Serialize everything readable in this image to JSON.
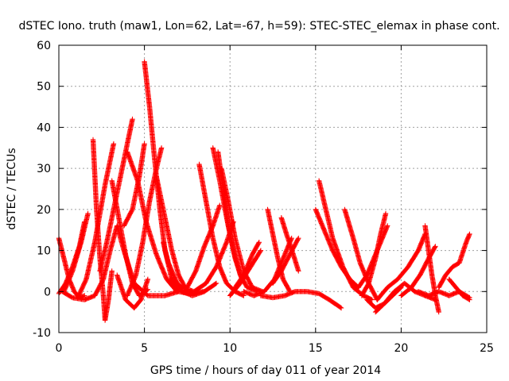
{
  "chart_data": {
    "type": "scatter",
    "title": "dSTEC Iono. truth (maw1, Lon=62, Lat=-67, h=59): STEC-STEC_elemax in phase cont.",
    "xlabel": "GPS time / hours of day 011 of year 2014",
    "ylabel": "dSTEC  / TECUs",
    "xlim": [
      0,
      25
    ],
    "ylim": [
      -10,
      60
    ],
    "xticks": [
      0,
      5,
      10,
      15,
      20,
      25
    ],
    "yticks": [
      -10,
      0,
      10,
      20,
      30,
      40,
      50,
      60
    ],
    "grid": true,
    "marker": "+",
    "color": "#ff0000",
    "series": [
      {
        "values": [
          [
            0.0,
            13.0
          ],
          [
            0.3,
            8.0
          ],
          [
            0.6,
            3.0
          ],
          [
            0.9,
            0.0
          ],
          [
            1.2,
            -1.5
          ],
          [
            1.5,
            -1.0
          ]
        ]
      },
      {
        "values": [
          [
            0.0,
            -0.5
          ],
          [
            0.4,
            2.0
          ],
          [
            0.8,
            6.0
          ],
          [
            1.2,
            11.0
          ],
          [
            1.5,
            17.0
          ]
        ]
      },
      {
        "values": [
          [
            0.3,
            0.0
          ],
          [
            0.8,
            5.0
          ],
          [
            1.3,
            12.0
          ],
          [
            1.7,
            19.0
          ]
        ]
      },
      {
        "values": [
          [
            1.1,
            -1.5
          ],
          [
            1.6,
            3.0
          ],
          [
            2.1,
            12.0
          ],
          [
            2.7,
            26.0
          ],
          [
            3.2,
            36.0
          ]
        ]
      },
      {
        "values": [
          [
            0.2,
            0.0
          ],
          [
            0.8,
            -1.5
          ],
          [
            1.5,
            -2.0
          ],
          [
            2.1,
            -1.0
          ],
          [
            2.6,
            3.0
          ],
          [
            3.0,
            10.0
          ],
          [
            3.4,
            16.0
          ],
          [
            3.8,
            10.0
          ],
          [
            4.4,
            2.0
          ],
          [
            5.2,
            -1.0
          ],
          [
            6.2,
            -1.0
          ],
          [
            7.0,
            0.0
          ]
        ]
      },
      {
        "values": [
          [
            2.0,
            37.0
          ],
          [
            2.2,
            20.0
          ],
          [
            2.4,
            8.0
          ],
          [
            2.6,
            -1.0
          ],
          [
            2.7,
            -7.0
          ],
          [
            2.9,
            -2.0
          ],
          [
            3.1,
            5.0
          ]
        ]
      },
      {
        "values": [
          [
            2.4,
            5.0
          ],
          [
            2.8,
            12.0
          ],
          [
            3.2,
            20.0
          ],
          [
            3.7,
            30.0
          ],
          [
            4.1,
            38.0
          ],
          [
            4.3,
            42.0
          ]
        ]
      },
      {
        "values": [
          [
            3.1,
            27.0
          ],
          [
            3.5,
            18.0
          ],
          [
            3.9,
            9.0
          ],
          [
            4.3,
            2.0
          ],
          [
            4.7,
            -1.0
          ],
          [
            5.2,
            0.5
          ]
        ]
      },
      {
        "values": [
          [
            3.4,
            4.0
          ],
          [
            3.9,
            -2.0
          ],
          [
            4.4,
            -4.0
          ],
          [
            4.8,
            -2.0
          ],
          [
            5.2,
            3.0
          ]
        ]
      },
      {
        "values": [
          [
            4.0,
            34.0
          ],
          [
            4.6,
            27.0
          ],
          [
            5.1,
            17.0
          ],
          [
            5.7,
            9.0
          ],
          [
            6.3,
            3.0
          ],
          [
            6.9,
            0.0
          ]
        ]
      },
      {
        "values": [
          [
            3.8,
            16.0
          ],
          [
            4.3,
            20.0
          ],
          [
            4.7,
            28.0
          ],
          [
            5.0,
            36.0
          ]
        ]
      },
      {
        "values": [
          [
            4.0,
            -1.0
          ],
          [
            4.5,
            4.0
          ],
          [
            4.9,
            12.0
          ],
          [
            5.3,
            22.0
          ],
          [
            5.7,
            30.0
          ],
          [
            6.0,
            35.0
          ]
        ]
      },
      {
        "values": [
          [
            5.0,
            56.0
          ],
          [
            5.3,
            45.0
          ],
          [
            5.6,
            32.0
          ],
          [
            5.9,
            20.0
          ],
          [
            6.2,
            10.0
          ],
          [
            6.6,
            3.0
          ],
          [
            7.0,
            0.0
          ],
          [
            7.6,
            -0.5
          ],
          [
            8.5,
            0.0
          ]
        ]
      },
      {
        "values": [
          [
            5.7,
            28.0
          ],
          [
            6.2,
            18.0
          ],
          [
            6.6,
            10.0
          ],
          [
            7.0,
            4.0
          ],
          [
            7.5,
            0.0
          ]
        ]
      },
      {
        "values": [
          [
            6.1,
            12.0
          ],
          [
            6.4,
            7.0
          ],
          [
            6.8,
            3.0
          ],
          [
            7.2,
            0.0
          ],
          [
            7.8,
            -1.0
          ],
          [
            8.5,
            0.0
          ],
          [
            9.2,
            2.0
          ]
        ]
      },
      {
        "values": [
          [
            8.2,
            31.0
          ],
          [
            8.6,
            22.0
          ],
          [
            9.0,
            13.0
          ],
          [
            9.4,
            6.0
          ],
          [
            9.8,
            2.0
          ],
          [
            10.3,
            0.0
          ],
          [
            10.8,
            -1.0
          ]
        ]
      },
      {
        "values": [
          [
            7.5,
            1.0
          ],
          [
            8.0,
            5.0
          ],
          [
            8.5,
            11.0
          ],
          [
            9.0,
            16.0
          ],
          [
            9.4,
            21.0
          ]
        ]
      },
      {
        "values": [
          [
            9.0,
            35.0
          ],
          [
            9.4,
            27.0
          ],
          [
            9.8,
            18.0
          ],
          [
            10.2,
            10.0
          ],
          [
            10.6,
            4.0
          ],
          [
            11.0,
            1.0
          ],
          [
            11.6,
            0.0
          ]
        ]
      },
      {
        "values": [
          [
            9.3,
            34.0
          ],
          [
            9.6,
            25.0
          ],
          [
            9.9,
            16.0
          ],
          [
            10.3,
            8.0
          ],
          [
            10.7,
            3.0
          ]
        ]
      },
      {
        "values": [
          [
            9.5,
            30.0
          ],
          [
            9.9,
            22.0
          ],
          [
            10.3,
            13.0
          ],
          [
            10.8,
            5.0
          ],
          [
            11.3,
            1.0
          ],
          [
            11.9,
            0.0
          ]
        ]
      },
      {
        "values": [
          [
            6.5,
            3.0
          ],
          [
            7.2,
            1.0
          ],
          [
            7.9,
            0.0
          ],
          [
            8.6,
            2.0
          ],
          [
            9.2,
            6.0
          ],
          [
            9.8,
            12.0
          ],
          [
            10.2,
            17.0
          ]
        ]
      },
      {
        "values": [
          [
            10.0,
            -1.0
          ],
          [
            10.6,
            2.0
          ],
          [
            11.2,
            6.0
          ],
          [
            11.8,
            10.0
          ]
        ]
      },
      {
        "values": [
          [
            10.3,
            1.0
          ],
          [
            10.8,
            4.0
          ],
          [
            11.3,
            9.0
          ],
          [
            11.7,
            12.0
          ]
        ]
      },
      {
        "values": [
          [
            12.2,
            20.0
          ],
          [
            12.5,
            14.0
          ],
          [
            12.8,
            8.0
          ],
          [
            13.1,
            3.0
          ],
          [
            13.5,
            0.0
          ]
        ]
      },
      {
        "values": [
          [
            10.8,
            0.0
          ],
          [
            11.4,
            -1.0
          ],
          [
            12.0,
            0.0
          ],
          [
            12.6,
            3.0
          ],
          [
            13.1,
            8.0
          ],
          [
            13.6,
            13.0
          ]
        ]
      },
      {
        "values": [
          [
            12.5,
            2.0
          ],
          [
            13.0,
            5.0
          ],
          [
            13.5,
            9.0
          ],
          [
            14.0,
            13.0
          ]
        ]
      },
      {
        "values": [
          [
            13.0,
            18.0
          ],
          [
            13.3,
            14.0
          ],
          [
            13.7,
            9.0
          ],
          [
            14.0,
            5.0
          ]
        ]
      },
      {
        "values": [
          [
            11.8,
            -1.0
          ],
          [
            12.5,
            -1.5
          ],
          [
            13.2,
            -1.0
          ],
          [
            13.8,
            0.0
          ],
          [
            14.5,
            0.0
          ],
          [
            15.2,
            -0.5
          ],
          [
            15.8,
            -2.0
          ],
          [
            16.5,
            -4.0
          ]
        ]
      },
      {
        "values": [
          [
            15.0,
            20.0
          ],
          [
            15.5,
            15.0
          ],
          [
            16.0,
            10.0
          ],
          [
            16.5,
            6.0
          ],
          [
            17.0,
            3.0
          ],
          [
            17.5,
            1.0
          ]
        ]
      },
      {
        "values": [
          [
            15.2,
            27.0
          ],
          [
            15.6,
            20.0
          ],
          [
            16.0,
            13.0
          ],
          [
            16.6,
            6.0
          ],
          [
            17.2,
            1.0
          ],
          [
            17.8,
            -1.0
          ],
          [
            18.3,
            -2.0
          ]
        ]
      },
      {
        "values": [
          [
            16.7,
            20.0
          ],
          [
            17.2,
            13.0
          ],
          [
            17.6,
            7.0
          ],
          [
            18.1,
            2.0
          ],
          [
            18.6,
            -2.0
          ]
        ]
      },
      {
        "values": [
          [
            17.5,
            1.0
          ],
          [
            18.0,
            4.0
          ],
          [
            18.4,
            8.0
          ],
          [
            18.8,
            12.0
          ],
          [
            19.2,
            16.0
          ]
        ]
      },
      {
        "values": [
          [
            17.7,
            -1.0
          ],
          [
            18.1,
            2.0
          ],
          [
            18.5,
            8.0
          ],
          [
            18.8,
            14.0
          ],
          [
            19.1,
            19.0
          ]
        ]
      },
      {
        "values": [
          [
            18.0,
            -2.0
          ],
          [
            18.5,
            -4.0
          ],
          [
            19.0,
            -3.0
          ],
          [
            19.5,
            -1.0
          ],
          [
            20.0,
            1.0
          ]
        ]
      },
      {
        "values": [
          [
            18.5,
            -5.0
          ],
          [
            19.0,
            -3.0
          ],
          [
            19.6,
            0.0
          ],
          [
            20.2,
            2.0
          ],
          [
            20.8,
            0.0
          ],
          [
            21.4,
            -1.0
          ],
          [
            22.0,
            -2.0
          ]
        ]
      },
      {
        "values": [
          [
            18.6,
            -2.0
          ],
          [
            19.2,
            1.0
          ],
          [
            19.8,
            3.0
          ],
          [
            20.4,
            6.0
          ],
          [
            21.0,
            10.0
          ],
          [
            21.4,
            14.0
          ]
        ]
      },
      {
        "values": [
          [
            20.0,
            -1.0
          ],
          [
            20.6,
            1.0
          ],
          [
            21.1,
            4.0
          ],
          [
            21.6,
            8.0
          ],
          [
            22.0,
            11.0
          ]
        ]
      },
      {
        "values": [
          [
            21.4,
            16.0
          ],
          [
            21.6,
            10.0
          ],
          [
            21.8,
            4.0
          ],
          [
            22.0,
            -1.0
          ],
          [
            22.2,
            -5.0
          ]
        ]
      },
      {
        "values": [
          [
            21.0,
            0.0
          ],
          [
            21.6,
            -1.0
          ],
          [
            22.2,
            0.0
          ],
          [
            22.8,
            -1.0
          ],
          [
            23.4,
            0.0
          ],
          [
            24.0,
            -1.5
          ]
        ]
      },
      {
        "values": [
          [
            22.2,
            1.0
          ],
          [
            22.6,
            4.0
          ],
          [
            23.0,
            6.0
          ],
          [
            23.4,
            7.0
          ],
          [
            23.8,
            12.0
          ],
          [
            24.0,
            14.0
          ]
        ]
      },
      {
        "values": [
          [
            22.8,
            3.0
          ],
          [
            23.2,
            1.0
          ],
          [
            23.6,
            -1.0
          ],
          [
            24.0,
            -2.0
          ]
        ]
      }
    ]
  }
}
